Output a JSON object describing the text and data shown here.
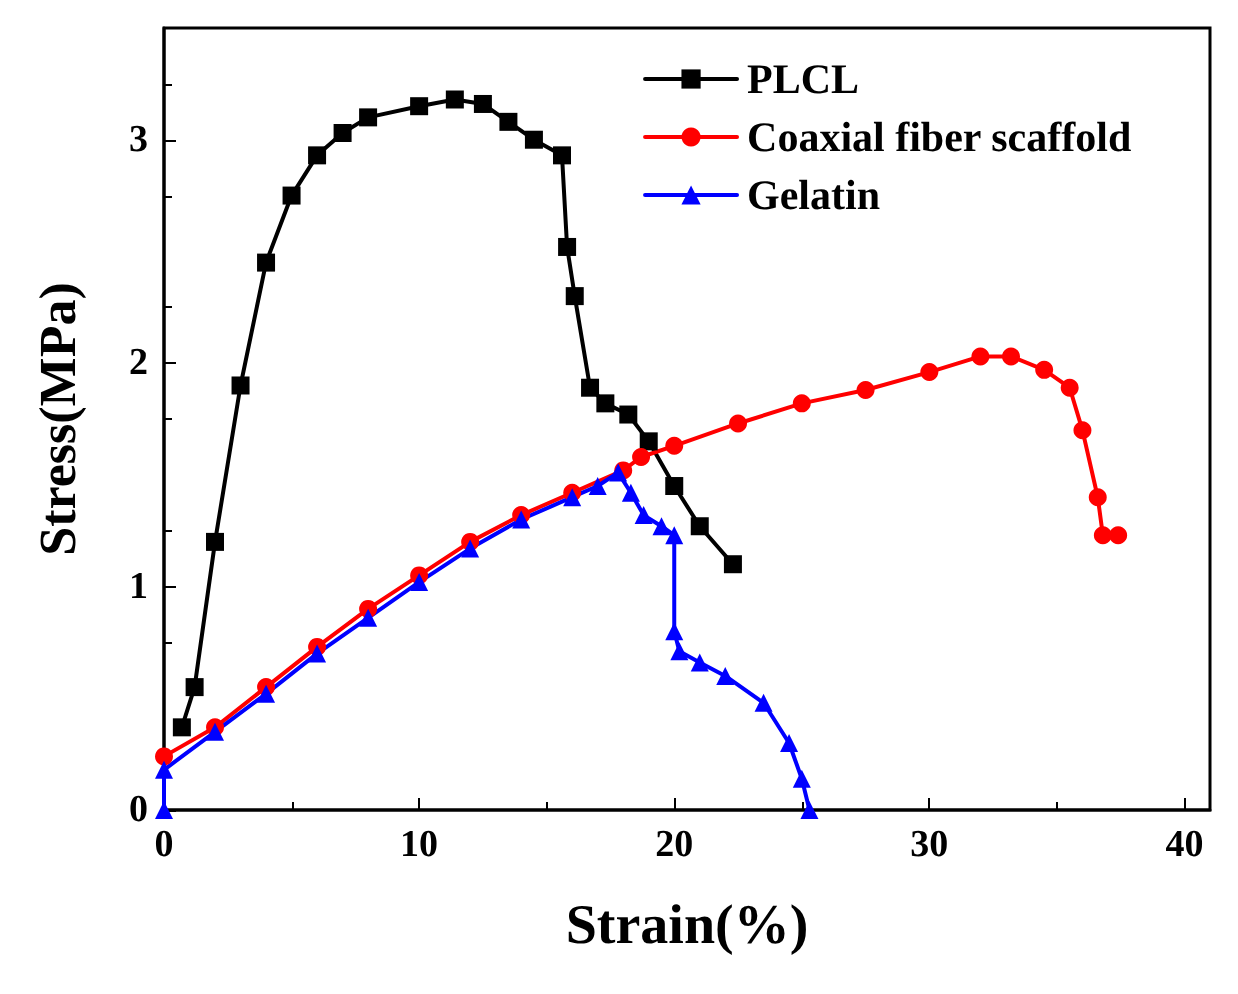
{
  "chart_data": {
    "type": "line",
    "xlabel": "Strain(%)",
    "ylabel": "Stress(MPa)",
    "xlim": [
      0,
      41
    ],
    "xticks": [
      0,
      10,
      20,
      30,
      40
    ],
    "ylim": [
      0,
      3.5
    ],
    "yticks": [
      0,
      1,
      2,
      3
    ],
    "grid": false,
    "legend": "top right",
    "series": [
      {
        "name": "PLCL",
        "color": "#000000",
        "marker": "square",
        "x": [
          0.7,
          1.2,
          2,
          3,
          4,
          5,
          6,
          7,
          8,
          10,
          11.4,
          12.5,
          13.5,
          14.5,
          15.6,
          15.8,
          16.1,
          16.7,
          17.3,
          18.2,
          19,
          20,
          21,
          22.3
        ],
        "values": [
          0.37,
          0.55,
          1.2,
          1.9,
          2.45,
          2.75,
          2.93,
          3.03,
          3.1,
          3.15,
          3.18,
          3.16,
          3.08,
          3.0,
          2.93,
          2.52,
          2.3,
          1.89,
          1.82,
          1.77,
          1.65,
          1.45,
          1.27,
          1.1
        ]
      },
      {
        "name": "Coaxial fiber scaffold",
        "color": "#ff0000",
        "marker": "circle",
        "x": [
          0,
          2,
          4,
          6,
          8,
          10,
          12,
          14,
          16,
          18,
          18.7,
          20,
          22.5,
          25,
          27.5,
          30,
          32,
          33.2,
          34.5,
          35.5,
          36,
          36.6,
          36.8,
          37.4
        ],
        "values": [
          0.24,
          0.37,
          0.55,
          0.73,
          0.9,
          1.05,
          1.2,
          1.32,
          1.42,
          1.52,
          1.58,
          1.63,
          1.73,
          1.82,
          1.88,
          1.96,
          2.03,
          2.03,
          1.97,
          1.89,
          1.7,
          1.4,
          1.23,
          1.23
        ]
      },
      {
        "name": "Gelatin",
        "color": "#0000ff",
        "marker": "triangle",
        "x": [
          0,
          0,
          2,
          4,
          6,
          8,
          10,
          12,
          14,
          16,
          17,
          17.8,
          18.3,
          18.8,
          19.5,
          20,
          20,
          20.2,
          21,
          22,
          23.5,
          24.5,
          25,
          25.3
        ],
        "values": [
          0,
          0.18,
          0.35,
          0.52,
          0.7,
          0.86,
          1.02,
          1.17,
          1.3,
          1.4,
          1.45,
          1.51,
          1.42,
          1.32,
          1.27,
          1.23,
          0.8,
          0.71,
          0.66,
          0.6,
          0.48,
          0.3,
          0.14,
          0
        ]
      }
    ]
  }
}
